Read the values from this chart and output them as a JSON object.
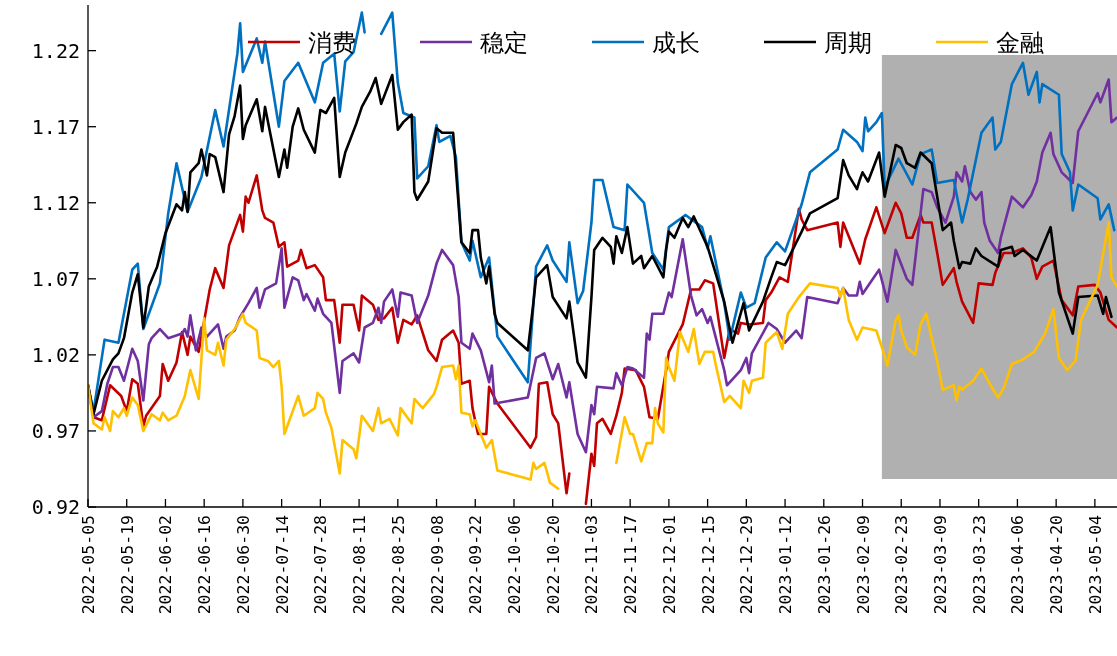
{
  "chart_data": {
    "type": "line",
    "legend": "top",
    "xlim": [
      "2022-05-05",
      "2023-05-12"
    ],
    "ylim": [
      0.92,
      1.25
    ],
    "xticks": [
      "2022-05-05",
      "2022-05-19",
      "2022-06-02",
      "2022-06-16",
      "2022-06-30",
      "2022-07-14",
      "2022-07-28",
      "2022-08-11",
      "2022-08-25",
      "2022-09-08",
      "2022-09-22",
      "2022-10-06",
      "2022-10-20",
      "2022-11-03",
      "2022-11-17",
      "2022-12-01",
      "2022-12-15",
      "2022-12-29",
      "2023-01-12",
      "2023-01-26",
      "2023-02-09",
      "2023-02-23",
      "2023-03-09",
      "2023-03-23",
      "2023-04-06",
      "2023-04-20",
      "2023-05-04"
    ],
    "yticks": [
      0.92,
      0.97,
      1.02,
      1.07,
      1.12,
      1.17,
      1.22
    ],
    "bands": [
      {
        "axis": "x",
        "from": "2023-02-16",
        "to": "2023-05-12",
        "color": "#b0b0b0"
      }
    ],
    "series": [
      {
        "name": "消费",
        "color": "#c00000",
        "x": [
          "2022-05-05",
          "2022-05-07",
          "2022-05-10",
          "2022-05-13",
          "2022-05-17",
          "2022-05-19",
          "2022-05-21",
          "2022-05-23",
          "2022-05-25",
          "2022-05-26",
          "2022-05-31",
          "2022-06-01",
          "2022-06-03",
          "2022-06-06",
          "2022-06-08",
          "2022-06-10",
          "2022-06-11",
          "2022-06-14",
          "2022-06-15",
          "2022-06-18",
          "2022-06-20",
          "2022-06-23",
          "2022-06-25",
          "2022-06-29",
          "2022-06-30",
          "2022-07-01",
          "2022-07-02",
          "2022-07-05",
          "2022-07-07",
          "2022-07-08",
          "2022-07-11",
          "2022-07-13",
          "2022-07-15",
          "2022-07-16",
          "2022-07-20",
          "2022-07-21",
          "2022-07-23",
          "2022-07-26",
          "2022-07-29",
          "2022-07-30",
          "2022-08-02",
          "2022-08-04",
          "2022-08-05",
          "2022-08-09",
          "2022-08-11",
          "2022-08-12",
          "2022-08-16",
          "2022-08-18",
          "2022-08-20",
          "2022-08-23",
          "2022-08-25",
          "2022-08-27",
          "2022-08-30",
          "2022-09-01",
          "2022-09-05",
          "2022-09-08",
          "2022-09-10",
          "2022-09-14",
          "2022-09-16",
          "2022-09-17",
          "2022-09-20",
          "2022-09-21",
          "2022-09-23",
          "2022-09-26",
          "2022-09-27",
          "2022-09-30",
          "2022-10-12",
          "2022-10-14",
          "2022-10-15",
          "2022-10-18",
          "2022-10-20",
          "2022-10-22",
          "2022-10-25",
          "2022-10-26",
          "2022-10-28",
          "2022-11-01",
          "2022-11-03",
          "2022-11-04",
          "2022-11-05",
          "2022-11-07",
          "2022-11-10",
          "2022-11-12",
          "2022-11-14",
          "2022-11-15",
          "2022-11-19",
          "2022-11-22",
          "2022-11-24",
          "2022-11-27",
          "2022-11-30",
          "2022-12-01",
          "2022-12-06",
          "2022-12-09",
          "2022-12-12",
          "2022-12-14",
          "2022-12-17",
          "2022-12-21",
          "2022-12-23",
          "2022-12-26",
          "2022-12-27",
          "2022-12-30",
          "2023-01-04",
          "2023-01-05",
          "2023-01-07",
          "2023-01-10",
          "2023-01-13",
          "2023-01-17",
          "2023-01-18",
          "2023-01-20",
          "2023-01-31",
          "2023-02-01",
          "2023-02-02",
          "2023-02-08",
          "2023-02-10",
          "2023-02-14",
          "2023-02-17",
          "2023-02-21",
          "2023-02-23",
          "2023-02-25",
          "2023-02-27",
          "2023-03-02",
          "2023-03-03",
          "2023-03-06",
          "2023-03-08",
          "2023-03-10",
          "2023-03-14",
          "2023-03-15",
          "2023-03-17",
          "2023-03-21",
          "2023-03-23",
          "2023-03-28",
          "2023-03-29",
          "2023-04-01",
          "2023-04-04",
          "2023-04-08",
          "2023-04-11",
          "2023-04-13",
          "2023-04-15",
          "2023-04-19",
          "2023-04-22",
          "2023-04-26",
          "2023-04-28",
          "2023-05-04",
          "2023-05-06",
          "2023-05-09",
          "2023-05-12"
        ],
        "values": [
          1.0,
          0.979,
          0.977,
          1.0,
          0.993,
          0.983,
          1.004,
          1.001,
          0.973,
          0.98,
          0.993,
          1.014,
          1.003,
          1.015,
          1.035,
          1.02,
          1.032,
          1.022,
          1.032,
          1.063,
          1.077,
          1.064,
          1.092,
          1.112,
          1.101,
          1.124,
          1.12,
          1.138,
          1.115,
          1.11,
          1.107,
          1.091,
          1.094,
          1.078,
          1.082,
          1.089,
          1.077,
          1.079,
          1.071,
          1.056,
          1.056,
          1.028,
          1.053,
          1.053,
          1.036,
          1.059,
          1.053,
          1.043,
          1.044,
          1.051,
          1.028,
          1.043,
          1.04,
          1.046,
          1.023,
          1.016,
          1.03,
          1.036,
          1.028,
          1.001,
          1.003,
          0.985,
          0.968,
          0.968,
          0.999,
          0.988,
          0.959,
          0.966,
          1.001,
          1.002,
          0.981,
          0.975,
          0.929,
          0.942,
          null,
          0.922,
          0.955,
          0.947,
          0.975,
          0.978,
          0.968,
          0.98,
          0.995,
          1.011,
          1.01,
          0.999,
          0.979,
          0.978,
          1.01,
          1.022,
          1.04,
          1.063,
          1.063,
          1.069,
          1.067,
          1.018,
          1.037,
          1.034,
          1.041,
          1.04,
          1.041,
          1.056,
          1.061,
          1.071,
          1.068,
          1.116,
          1.109,
          1.102,
          1.107,
          1.091,
          1.107,
          1.08,
          1.096,
          1.117,
          1.1,
          1.12,
          1.113,
          1.097,
          1.097,
          1.112,
          1.107,
          1.107,
          1.087,
          1.066,
          1.077,
          1.068,
          1.055,
          1.041,
          1.067,
          1.066,
          1.074,
          1.087,
          1.087,
          1.09,
          1.084,
          1.07,
          1.078,
          1.082,
          1.056,
          1.046,
          1.065,
          1.066,
          1.061,
          1.043,
          1.038
        ]
      },
      {
        "name": "稳定",
        "color": "#7030a0",
        "x": [
          "2022-05-05",
          "2022-05-07",
          "2022-05-10",
          "2022-05-12",
          "2022-05-14",
          "2022-05-16",
          "2022-05-18",
          "2022-05-21",
          "2022-05-23",
          "2022-05-25",
          "2022-05-27",
          "2022-05-28",
          "2022-05-31",
          "2022-06-03",
          "2022-06-08",
          "2022-06-09",
          "2022-06-10",
          "2022-06-11",
          "2022-06-13",
          "2022-06-15",
          "2022-06-17",
          "2022-06-21",
          "2022-06-23",
          "2022-06-24",
          "2022-06-27",
          "2022-06-29",
          "2022-07-02",
          "2022-07-05",
          "2022-07-06",
          "2022-07-08",
          "2022-07-12",
          "2022-07-14",
          "2022-07-15",
          "2022-07-18",
          "2022-07-20",
          "2022-07-22",
          "2022-07-23",
          "2022-07-26",
          "2022-07-27",
          "2022-07-29",
          "2022-08-01",
          "2022-08-04",
          "2022-08-05",
          "2022-08-09",
          "2022-08-11",
          "2022-08-13",
          "2022-08-16",
          "2022-08-18",
          "2022-08-19",
          "2022-08-20",
          "2022-08-23",
          "2022-08-25",
          "2022-08-26",
          "2022-08-30",
          "2022-09-01",
          "2022-09-05",
          "2022-09-08",
          "2022-09-10",
          "2022-09-14",
          "2022-09-16",
          "2022-09-17",
          "2022-09-20",
          "2022-09-21",
          "2022-09-24",
          "2022-09-27",
          "2022-09-28",
          "2022-09-29",
          "2022-10-11",
          "2022-10-14",
          "2022-10-17",
          "2022-10-20",
          "2022-10-22",
          "2022-10-25",
          "2022-10-26",
          "2022-10-29",
          "2022-11-01",
          "2022-11-03",
          "2022-11-04",
          "2022-11-05",
          "2022-11-11",
          "2022-11-12",
          "2022-11-14",
          "2022-11-16",
          "2022-11-18",
          "2022-11-22",
          "2022-11-23",
          "2022-11-24",
          "2022-11-25",
          "2022-11-29",
          "2022-12-01",
          "2022-12-02",
          "2022-12-06",
          "2022-12-09",
          "2022-12-11",
          "2022-12-13",
          "2022-12-15",
          "2022-12-16",
          "2022-12-21",
          "2022-12-22",
          "2022-12-27",
          "2022-12-29",
          "2022-12-30",
          "2022-12-31",
          "2023-01-06",
          "2023-01-09",
          "2023-01-12",
          "2023-01-16",
          "2023-01-18",
          "2023-01-20",
          "2023-01-31",
          "2023-02-02",
          "2023-02-04",
          "2023-02-07",
          "2023-02-08",
          "2023-02-09",
          "2023-02-15",
          "2023-02-18",
          "2023-02-21",
          "2023-02-25",
          "2023-02-27",
          "2023-03-03",
          "2023-03-06",
          "2023-03-08",
          "2023-03-11",
          "2023-03-14",
          "2023-03-15",
          "2023-03-17",
          "2023-03-18",
          "2023-03-20",
          "2023-03-22",
          "2023-03-24",
          "2023-03-25",
          "2023-03-27",
          "2023-03-30",
          "2023-03-31",
          "2023-04-04",
          "2023-04-08",
          "2023-04-11",
          "2023-04-13",
          "2023-04-15",
          "2023-04-18",
          "2023-04-19",
          "2023-04-22",
          "2023-04-26",
          "2023-04-28",
          "2023-05-05",
          "2023-05-06",
          "2023-05-09",
          "2023-05-10",
          "2023-05-12"
        ],
        "values": [
          1.0,
          0.979,
          0.983,
          1.001,
          1.012,
          1.012,
          1.003,
          1.024,
          1.016,
          0.99,
          1.027,
          1.031,
          1.037,
          1.031,
          1.034,
          1.037,
          1.032,
          1.046,
          1.023,
          1.038,
          1.032,
          1.04,
          1.024,
          1.032,
          1.036,
          1.045,
          1.054,
          1.064,
          1.051,
          1.063,
          1.067,
          1.09,
          1.051,
          1.071,
          1.069,
          1.056,
          1.06,
          1.049,
          1.057,
          1.047,
          1.041,
          0.995,
          1.016,
          1.021,
          1.015,
          1.038,
          1.041,
          1.051,
          1.041,
          1.055,
          1.063,
          1.045,
          1.061,
          1.059,
          1.041,
          1.059,
          1.08,
          1.089,
          1.079,
          1.058,
          1.028,
          1.024,
          1.034,
          1.023,
          1.002,
          1.013,
          0.988,
          0.992,
          1.018,
          1.021,
          1.004,
          1.014,
          0.992,
          1.002,
          0.968,
          0.956,
          0.987,
          0.981,
          0.999,
          0.998,
          1.008,
          1.0,
          1.012,
          1.011,
          1.005,
          1.034,
          1.03,
          1.047,
          1.047,
          1.061,
          1.058,
          1.096,
          1.059,
          1.046,
          1.05,
          1.041,
          1.045,
          1.01,
          1.0,
          1.01,
          1.018,
          1.008,
          1.021,
          1.041,
          1.037,
          1.028,
          1.036,
          1.031,
          1.058,
          1.054,
          1.064,
          1.059,
          1.059,
          1.068,
          1.06,
          1.076,
          1.055,
          1.089,
          1.07,
          1.066,
          1.129,
          1.127,
          1.117,
          1.107,
          1.124,
          1.14,
          1.134,
          1.144,
          1.127,
          1.122,
          1.127,
          1.107,
          1.095,
          1.087,
          1.097,
          1.124,
          1.117,
          1.125,
          1.134,
          1.153,
          1.166,
          1.152,
          1.14,
          1.133,
          1.167,
          1.192,
          1.186,
          1.201,
          1.173,
          1.176
        ]
      },
      {
        "name": "成长",
        "color": "#0070c0",
        "x": [
          "2022-05-05",
          "2022-05-07",
          "2022-05-11",
          "2022-05-16",
          "2022-05-21",
          "2022-05-23",
          "2022-05-25",
          "2022-05-31",
          "2022-06-03",
          "2022-06-06",
          "2022-06-10",
          "2022-06-15",
          "2022-06-20",
          "2022-06-23",
          "2022-06-28",
          "2022-06-29",
          "2022-06-30",
          "2022-07-05",
          "2022-07-07",
          "2022-07-08",
          "2022-07-13",
          "2022-07-15",
          "2022-07-20",
          "2022-07-26",
          "2022-07-29",
          "2022-08-02",
          "2022-08-04",
          "2022-08-06",
          "2022-08-09",
          "2022-08-12",
          "2022-08-13",
          "2022-08-17",
          "2022-08-19",
          "2022-08-23",
          "2022-08-25",
          "2022-08-27",
          "2022-08-31",
          "2022-09-01",
          "2022-09-05",
          "2022-09-08",
          "2022-09-09",
          "2022-09-13",
          "2022-09-15",
          "2022-09-17",
          "2022-09-20",
          "2022-09-21",
          "2022-09-24",
          "2022-09-27",
          "2022-09-29",
          "2022-09-30",
          "2022-10-11",
          "2022-10-14",
          "2022-10-18",
          "2022-10-20",
          "2022-10-25",
          "2022-10-26",
          "2022-10-29",
          "2022-10-31",
          "2022-11-03",
          "2022-11-04",
          "2022-11-07",
          "2022-11-11",
          "2022-11-15",
          "2022-11-16",
          "2022-11-22",
          "2022-11-25",
          "2022-11-29",
          "2022-12-01",
          "2022-12-07",
          "2022-12-13",
          "2022-12-15",
          "2022-12-16",
          "2022-12-21",
          "2022-12-23",
          "2022-12-27",
          "2022-12-29",
          "2023-01-01",
          "2023-01-05",
          "2023-01-09",
          "2023-01-12",
          "2023-01-18",
          "2023-01-21",
          "2023-01-31",
          "2023-02-02",
          "2023-02-07",
          "2023-02-09",
          "2023-02-10",
          "2023-02-11",
          "2023-02-14",
          "2023-02-16",
          "2023-02-17",
          "2023-02-22",
          "2023-02-27",
          "2023-03-02",
          "2023-03-06",
          "2023-03-08",
          "2023-03-14",
          "2023-03-17",
          "2023-03-19",
          "2023-03-24",
          "2023-03-28",
          "2023-03-29",
          "2023-03-31",
          "2023-04-04",
          "2023-04-08",
          "2023-04-10",
          "2023-04-13",
          "2023-04-14",
          "2023-04-15",
          "2023-04-21",
          "2023-04-22",
          "2023-04-25",
          "2023-04-26",
          "2023-04-28",
          "2023-05-05",
          "2023-05-06",
          "2023-05-09",
          "2023-05-11"
        ],
        "values": [
          1.0,
          0.983,
          1.03,
          1.028,
          1.076,
          1.08,
          1.037,
          1.067,
          1.113,
          1.146,
          1.114,
          1.137,
          1.181,
          1.157,
          1.218,
          1.238,
          1.206,
          1.228,
          1.212,
          1.226,
          1.17,
          1.2,
          1.212,
          1.186,
          1.212,
          1.218,
          1.18,
          1.213,
          1.219,
          1.245,
          1.232,
          null,
          1.231,
          1.245,
          1.199,
          1.179,
          1.176,
          1.136,
          1.144,
          1.171,
          1.16,
          1.164,
          1.15,
          1.094,
          1.082,
          1.095,
          1.071,
          1.084,
          1.049,
          1.032,
          1.002,
          1.078,
          1.092,
          1.082,
          1.068,
          1.094,
          1.054,
          1.062,
          1.107,
          1.135,
          1.135,
          1.104,
          1.102,
          1.132,
          1.12,
          1.087,
          1.076,
          1.104,
          1.112,
          1.104,
          1.09,
          1.098,
          1.054,
          1.03,
          1.061,
          1.051,
          1.054,
          1.084,
          1.094,
          1.088,
          1.119,
          1.14,
          1.155,
          1.168,
          1.16,
          1.154,
          1.176,
          1.167,
          1.173,
          1.179,
          1.13,
          1.149,
          1.132,
          1.152,
          1.155,
          1.133,
          1.135,
          1.107,
          1.122,
          1.166,
          1.176,
          1.155,
          1.16,
          1.198,
          1.212,
          1.191,
          1.206,
          1.186,
          1.198,
          1.191,
          1.152,
          1.14,
          1.115,
          1.132,
          1.123,
          1.109,
          1.119,
          1.102
        ]
      },
      {
        "name": "周期",
        "color": "#000000",
        "x": [
          "2022-05-05",
          "2022-05-07",
          "2022-05-10",
          "2022-05-14",
          "2022-05-16",
          "2022-05-18",
          "2022-05-21",
          "2022-05-23",
          "2022-05-25",
          "2022-05-27",
          "2022-05-30",
          "2022-06-02",
          "2022-06-06",
          "2022-06-08",
          "2022-06-09",
          "2022-06-10",
          "2022-06-11",
          "2022-06-14",
          "2022-06-15",
          "2022-06-17",
          "2022-06-18",
          "2022-06-20",
          "2022-06-23",
          "2022-06-25",
          "2022-06-27",
          "2022-06-29",
          "2022-06-30",
          "2022-07-01",
          "2022-07-05",
          "2022-07-07",
          "2022-07-08",
          "2022-07-13",
          "2022-07-15",
          "2022-07-16",
          "2022-07-18",
          "2022-07-20",
          "2022-07-22",
          "2022-07-26",
          "2022-07-28",
          "2022-07-30",
          "2022-08-02",
          "2022-08-04",
          "2022-08-06",
          "2022-08-10",
          "2022-08-12",
          "2022-08-15",
          "2022-08-17",
          "2022-08-19",
          "2022-08-23",
          "2022-08-25",
          "2022-08-27",
          "2022-08-30",
          "2022-08-31",
          "2022-09-01",
          "2022-09-05",
          "2022-09-08",
          "2022-09-10",
          "2022-09-14",
          "2022-09-17",
          "2022-09-20",
          "2022-09-21",
          "2022-09-23",
          "2022-09-24",
          "2022-09-26",
          "2022-09-27",
          "2022-09-29",
          "2022-09-30",
          "2022-10-11",
          "2022-10-13",
          "2022-10-14",
          "2022-10-18",
          "2022-10-20",
          "2022-10-25",
          "2022-10-26",
          "2022-10-29",
          "2022-11-01",
          "2022-11-03",
          "2022-11-04",
          "2022-11-07",
          "2022-11-10",
          "2022-11-11",
          "2022-11-12",
          "2022-11-14",
          "2022-11-16",
          "2022-11-18",
          "2022-11-21",
          "2022-11-22",
          "2022-11-25",
          "2022-11-29",
          "2022-11-30",
          "2022-12-01",
          "2022-12-03",
          "2022-12-06",
          "2022-12-08",
          "2022-12-10",
          "2022-12-15",
          "2022-12-21",
          "2022-12-24",
          "2022-12-28",
          "2022-12-30",
          "2023-01-04",
          "2023-01-07",
          "2023-01-09",
          "2023-01-12",
          "2023-01-18",
          "2023-01-21",
          "2023-01-31",
          "2023-02-02",
          "2023-02-04",
          "2023-02-07",
          "2023-02-08",
          "2023-02-09",
          "2023-02-11",
          "2023-02-15",
          "2023-02-17",
          "2023-02-21",
          "2023-02-23",
          "2023-02-25",
          "2023-02-28",
          "2023-03-02",
          "2023-03-06",
          "2023-03-10",
          "2023-03-13",
          "2023-03-14",
          "2023-03-16",
          "2023-03-17",
          "2023-03-20",
          "2023-03-22",
          "2023-03-24",
          "2023-03-30",
          "2023-03-31",
          "2023-04-04",
          "2023-04-05",
          "2023-04-08",
          "2023-04-13",
          "2023-04-18",
          "2023-04-21",
          "2023-04-26",
          "2023-04-28",
          "2023-05-05",
          "2023-05-07",
          "2023-05-08",
          "2023-05-10"
        ],
        "values": [
          1.0,
          0.981,
          1.003,
          1.017,
          1.021,
          1.031,
          1.061,
          1.073,
          1.038,
          1.065,
          1.078,
          1.1,
          1.119,
          1.115,
          1.127,
          1.114,
          1.14,
          1.146,
          1.155,
          1.138,
          1.152,
          1.15,
          1.127,
          1.165,
          1.177,
          1.197,
          1.162,
          1.171,
          1.188,
          1.167,
          1.183,
          1.137,
          1.155,
          1.143,
          1.17,
          1.182,
          1.168,
          1.153,
          1.181,
          1.179,
          1.189,
          1.137,
          1.153,
          1.172,
          1.183,
          1.193,
          1.202,
          1.185,
          1.204,
          1.168,
          1.173,
          1.178,
          1.127,
          1.122,
          1.134,
          1.169,
          1.166,
          1.166,
          1.094,
          1.087,
          1.102,
          1.102,
          1.084,
          1.067,
          1.078,
          1.047,
          1.041,
          1.023,
          1.054,
          1.071,
          1.079,
          1.058,
          1.044,
          1.055,
          1.015,
          1.005,
          1.058,
          1.089,
          1.097,
          1.091,
          1.08,
          1.098,
          1.087,
          1.104,
          1.08,
          1.085,
          1.077,
          1.085,
          1.071,
          1.089,
          1.101,
          1.097,
          1.11,
          1.104,
          1.111,
          1.091,
          1.055,
          1.028,
          1.054,
          1.036,
          1.055,
          1.071,
          1.081,
          1.079,
          1.101,
          1.113,
          1.123,
          1.148,
          1.138,
          1.129,
          1.135,
          1.14,
          1.134,
          1.153,
          1.124,
          1.158,
          1.156,
          1.146,
          1.143,
          1.153,
          1.146,
          1.102,
          1.107,
          1.095,
          1.077,
          1.081,
          1.08,
          1.09,
          1.085,
          1.078,
          1.089,
          1.091,
          1.085,
          1.089,
          1.082,
          1.104,
          1.061,
          1.034,
          1.058,
          1.059,
          1.047,
          1.058,
          1.045
        ]
      },
      {
        "name": "金融",
        "color": "#ffc000",
        "x": [
          "2022-05-05",
          "2022-05-07",
          "2022-05-10",
          "2022-05-11",
          "2022-05-13",
          "2022-05-14",
          "2022-05-16",
          "2022-05-18",
          "2022-05-19",
          "2022-05-21",
          "2022-05-23",
          "2022-05-25",
          "2022-05-28",
          "2022-05-31",
          "2022-06-01",
          "2022-06-03",
          "2022-06-06",
          "2022-06-09",
          "2022-06-11",
          "2022-06-14",
          "2022-06-16",
          "2022-06-17",
          "2022-06-20",
          "2022-06-21",
          "2022-06-23",
          "2022-06-24",
          "2022-06-27",
          "2022-06-30",
          "2022-07-01",
          "2022-07-05",
          "2022-07-06",
          "2022-07-09",
          "2022-07-11",
          "2022-07-13",
          "2022-07-14",
          "2022-07-15",
          "2022-07-20",
          "2022-07-22",
          "2022-07-26",
          "2022-07-27",
          "2022-07-29",
          "2022-07-30",
          "2022-08-01",
          "2022-08-04",
          "2022-08-05",
          "2022-08-09",
          "2022-08-10",
          "2022-08-12",
          "2022-08-16",
          "2022-08-18",
          "2022-08-19",
          "2022-08-22",
          "2022-08-25",
          "2022-08-26",
          "2022-08-30",
          "2022-08-31",
          "2022-09-03",
          "2022-09-07",
          "2022-09-08",
          "2022-09-10",
          "2022-09-14",
          "2022-09-15",
          "2022-09-16",
          "2022-09-17",
          "2022-09-20",
          "2022-09-21",
          "2022-09-22",
          "2022-09-26",
          "2022-09-28",
          "2022-09-30",
          "2022-10-12",
          "2022-10-13",
          "2022-10-14",
          "2022-10-17",
          "2022-10-19",
          "2022-10-22",
          "2022-10-23",
          "2022-11-11",
          "2022-11-12",
          "2022-11-15",
          "2022-11-17",
          "2022-11-18",
          "2022-11-21",
          "2022-11-23",
          "2022-11-25",
          "2022-11-26",
          "2022-11-27",
          "2022-11-29",
          "2022-11-30",
          "2022-12-01",
          "2022-12-03",
          "2022-12-05",
          "2022-12-08",
          "2022-12-10",
          "2022-12-12",
          "2022-12-14",
          "2022-12-17",
          "2022-12-18",
          "2022-12-21",
          "2022-12-23",
          "2022-12-27",
          "2022-12-28",
          "2022-12-30",
          "2022-12-31",
          "2023-01-04",
          "2023-01-05",
          "2023-01-09",
          "2023-01-11",
          "2023-01-13",
          "2023-01-17",
          "2023-01-21",
          "2023-01-31",
          "2023-02-01",
          "2023-02-02",
          "2023-02-04",
          "2023-02-07",
          "2023-02-09",
          "2023-02-14",
          "2023-02-16",
          "2023-02-18",
          "2023-02-21",
          "2023-02-22",
          "2023-02-23",
          "2023-02-25",
          "2023-02-28",
          "2023-03-02",
          "2023-03-04",
          "2023-03-06",
          "2023-03-08",
          "2023-03-10",
          "2023-03-14",
          "2023-03-15",
          "2023-03-16",
          "2023-03-17",
          "2023-03-21",
          "2023-03-24",
          "2023-03-27",
          "2023-03-30",
          "2023-04-01",
          "2023-04-04",
          "2023-04-08",
          "2023-04-12",
          "2023-04-16",
          "2023-04-19",
          "2023-04-21",
          "2023-04-24",
          "2023-04-27",
          "2023-04-29",
          "2023-05-05",
          "2023-05-09",
          "2023-05-10",
          "2023-05-12"
        ],
        "values": [
          1.0,
          0.975,
          0.971,
          0.979,
          0.97,
          0.983,
          0.979,
          0.985,
          0.98,
          0.992,
          0.987,
          0.97,
          0.981,
          0.977,
          0.982,
          0.977,
          0.98,
          0.993,
          1.01,
          0.991,
          1.044,
          1.023,
          1.02,
          1.028,
          1.013,
          1.03,
          1.037,
          1.047,
          1.041,
          1.036,
          1.018,
          1.016,
          1.012,
          1.016,
          0.999,
          0.968,
          0.993,
          0.98,
          0.985,
          0.995,
          0.991,
          0.982,
          0.972,
          0.942,
          0.964,
          0.958,
          0.952,
          0.98,
          0.97,
          0.985,
          0.975,
          0.978,
          0.967,
          0.985,
          0.975,
          0.991,
          0.985,
          0.994,
          0.999,
          1.012,
          1.013,
          1.004,
          1.013,
          0.982,
          0.981,
          0.973,
          0.977,
          0.959,
          0.964,
          0.944,
          0.938,
          0.949,
          0.945,
          0.949,
          0.936,
          0.932,
          null,
          null,
          0.949,
          0.979,
          0.968,
          0.968,
          0.95,
          0.962,
          0.962,
          0.985,
          0.975,
          0.969,
          1.018,
          1.012,
          1.003,
          1.035,
          1.022,
          1.037,
          1.014,
          1.022,
          1.022,
          1.013,
          0.989,
          0.993,
          0.985,
          1.003,
          0.995,
          1.003,
          1.005,
          1.028,
          1.035,
          1.024,
          1.047,
          1.058,
          1.067,
          1.064,
          1.058,
          1.064,
          1.043,
          1.03,
          1.038,
          1.036,
          1.025,
          1.013,
          1.043,
          1.046,
          1.036,
          1.025,
          1.02,
          1.04,
          1.047,
          1.031,
          1.016,
          0.997,
          1.0,
          0.99,
          0.999,
          0.997,
          1.003,
          1.011,
          1.001,
          0.992,
          0.998,
          1.014,
          1.017,
          1.022,
          1.034,
          1.05,
          1.018,
          1.01,
          1.016,
          1.043,
          1.066,
          1.107,
          1.071,
          1.065
        ]
      }
    ]
  }
}
